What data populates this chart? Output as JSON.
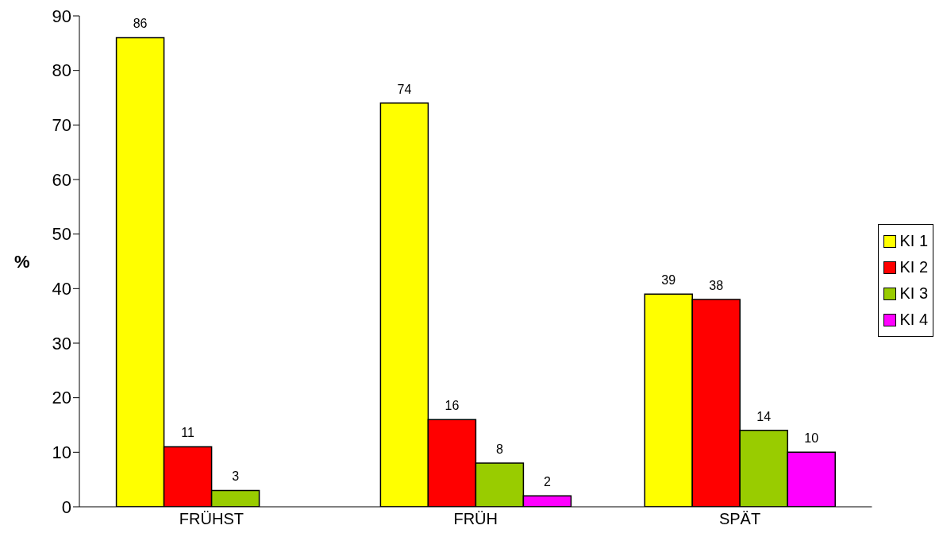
{
  "chart_data": {
    "type": "bar",
    "ylabel": "%",
    "categories": [
      "FRÜHST",
      "FRÜH",
      "SPÄT"
    ],
    "series": [
      {
        "name": "KI 1",
        "color": "#ffff00",
        "values": [
          86,
          74,
          39
        ]
      },
      {
        "name": "KI 2",
        "color": "#ff0000",
        "values": [
          11,
          16,
          38
        ]
      },
      {
        "name": "KI 3",
        "color": "#99cc00",
        "values": [
          3,
          8,
          14
        ]
      },
      {
        "name": "KI 4",
        "color": "#ff00ff",
        "values": [
          null,
          2,
          10
        ]
      }
    ],
    "ylim": [
      0,
      90
    ],
    "yticks": [
      0,
      10,
      20,
      30,
      40,
      50,
      60,
      70,
      80,
      90
    ],
    "grid": false,
    "legend": "right",
    "data_labels": true
  }
}
